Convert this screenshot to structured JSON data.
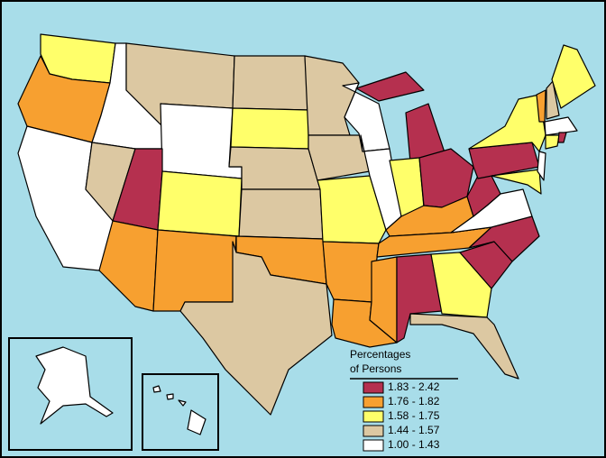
{
  "legend": {
    "title": [
      "Percentages",
      "of Persons"
    ],
    "items": [
      {
        "label": "1.83 - 2.42",
        "color": "#b5304f"
      },
      {
        "label": "1.76 - 1.82",
        "color": "#f7a030"
      },
      {
        "label": "1.58 - 1.75",
        "color": "#ffff6a"
      },
      {
        "label": "1.44 - 1.57",
        "color": "#dcc8a2"
      },
      {
        "label": "1.00 - 1.43",
        "color": "#ffffff"
      }
    ]
  }
}
